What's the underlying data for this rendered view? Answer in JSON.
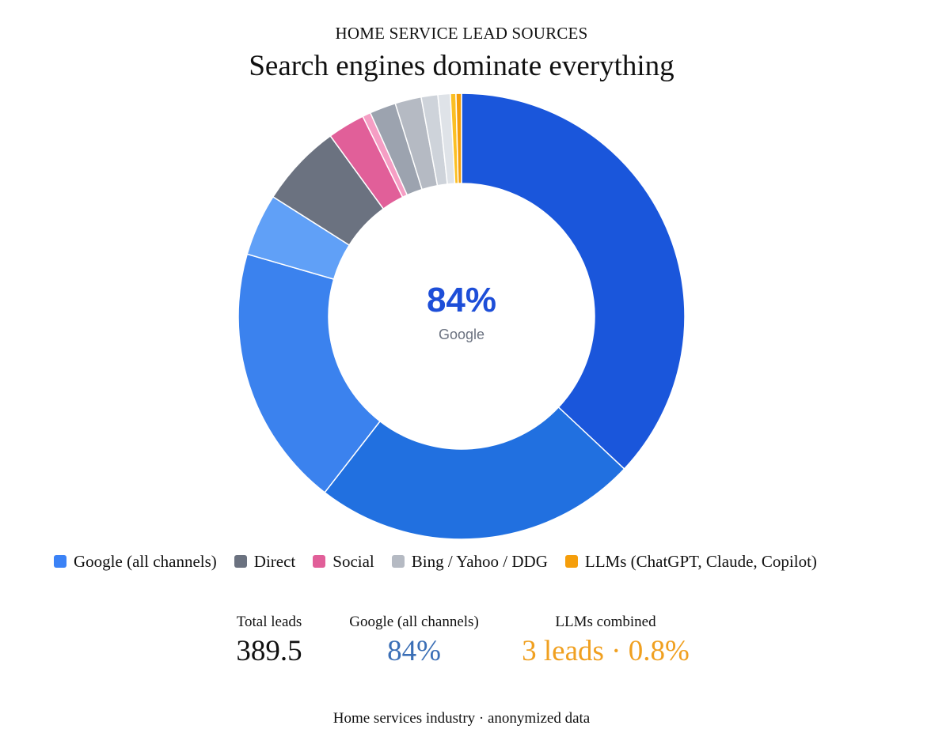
{
  "header": {
    "kicker": "HOME SERVICE LEAD SOURCES",
    "title": "Search engines dominate everything"
  },
  "center": {
    "value": "84%",
    "label": "Google"
  },
  "legend": [
    {
      "label": "Google (all channels)",
      "color": "#3b82f6"
    },
    {
      "label": "Direct",
      "color": "#6b7280"
    },
    {
      "label": "Social",
      "color": "#e15f99"
    },
    {
      "label": "Bing / Yahoo / DDG",
      "color": "#b5bac3"
    },
    {
      "label": "LLMs (ChatGPT, Claude, Copilot)",
      "color": "#f59e0b"
    }
  ],
  "stats": {
    "total": {
      "label": "Total leads",
      "value": "389.5",
      "color": "#111111"
    },
    "google": {
      "label": "Google (all channels)",
      "value": "84%",
      "color": "#3b6fb6"
    },
    "llms": {
      "label": "LLMs combined",
      "value": "3 leads · 0.8%",
      "color": "#f0a020"
    }
  },
  "footer": "Home services industry · anonymized data",
  "chart_data": {
    "type": "pie",
    "variant": "donut",
    "total": 389.5,
    "slices": [
      {
        "group": "Google (all channels)",
        "value": 37.0,
        "color": "#1a56db"
      },
      {
        "group": "Google (all channels)",
        "value": 23.5,
        "color": "#2170e0"
      },
      {
        "group": "Google (all channels)",
        "value": 19.0,
        "color": "#3b82ee"
      },
      {
        "group": "Google (all channels)",
        "value": 4.5,
        "color": "#60a0f7"
      },
      {
        "group": "Direct",
        "value": 6.0,
        "color": "#6b7280"
      },
      {
        "group": "Social",
        "value": 2.7,
        "color": "#e15f99"
      },
      {
        "group": "Social",
        "value": 0.6,
        "color": "#f59ec4"
      },
      {
        "group": "Bing / Yahoo / DDG",
        "value": 1.9,
        "color": "#9ca3af"
      },
      {
        "group": "Bing / Yahoo / DDG",
        "value": 1.9,
        "color": "#b5bac3"
      },
      {
        "group": "Bing / Yahoo / DDG",
        "value": 1.2,
        "color": "#ced3da"
      },
      {
        "group": "Bing / Yahoo / DDG",
        "value": 0.9,
        "color": "#dfe3e8"
      },
      {
        "group": "LLMs (ChatGPT, Claude, Copilot)",
        "value": 0.4,
        "color": "#fbbf24"
      },
      {
        "group": "LLMs (ChatGPT, Claude, Copilot)",
        "value": 0.4,
        "color": "#f59e0b"
      }
    ]
  }
}
